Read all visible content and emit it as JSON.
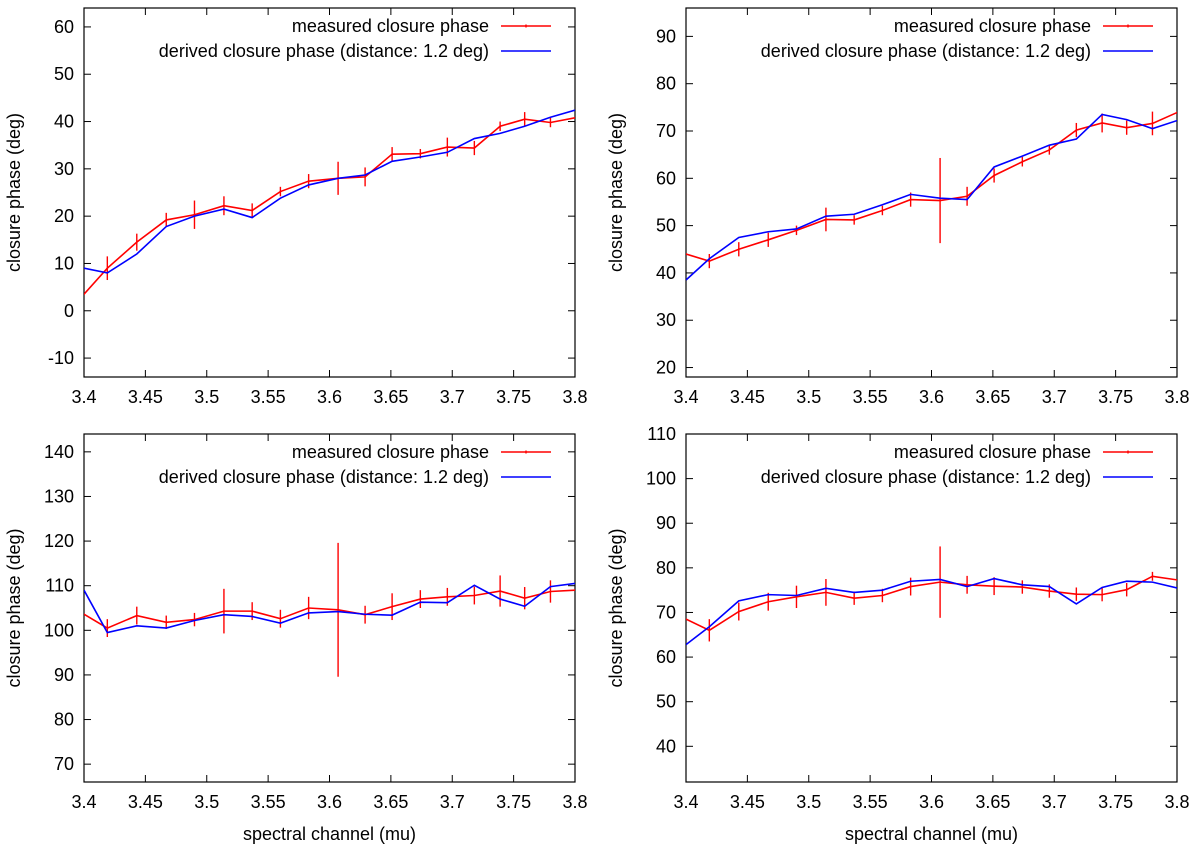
{
  "colors": {
    "measured": "#ff0000",
    "derived": "#0000ff",
    "axis": "#000000"
  },
  "chart_data": [
    {
      "type": "line",
      "position": "top-left",
      "title": "",
      "xlabel": "",
      "ylabel": "closure phase (deg)",
      "xlim": [
        3.4,
        3.8
      ],
      "ylim": [
        -14,
        64
      ],
      "xticks": [
        3.4,
        3.45,
        3.5,
        3.55,
        3.6,
        3.65,
        3.7,
        3.75,
        3.8
      ],
      "xtick_labels": [
        "3.4",
        "3.45",
        "3.5",
        "3.55",
        "3.6",
        "3.65",
        "3.7",
        "3.75",
        "3.8"
      ],
      "yticks": [
        -10,
        0,
        10,
        20,
        30,
        40,
        50,
        60
      ],
      "ytick_labels": [
        "-10",
        "0",
        "10",
        "20",
        "30",
        "40",
        "50",
        "60"
      ],
      "legend": {
        "placement": "top-right",
        "entries": [
          "measured closure phase",
          "derived closure phase (distance: 1.2 deg)"
        ]
      },
      "x": [
        3.4,
        3.419,
        3.443,
        3.467,
        3.49,
        3.514,
        3.537,
        3.56,
        3.583,
        3.607,
        3.629,
        3.651,
        3.674,
        3.696,
        3.718,
        3.739,
        3.759,
        3.78,
        3.8
      ],
      "series": [
        {
          "name": "measured closure phase",
          "style": "errorbar",
          "values": [
            3.5,
            9,
            14.5,
            19.2,
            20.3,
            22.2,
            21.2,
            25.2,
            27.4,
            28,
            28.3,
            33.1,
            33.2,
            34.6,
            34.4,
            39,
            40.5,
            39.8,
            40.8
          ],
          "errors": [
            0,
            2.5,
            1.8,
            1.5,
            3,
            2,
            1.5,
            1,
            1.5,
            3.5,
            2,
            1.5,
            1,
            2,
            1.5,
            1,
            1.5,
            1,
            0
          ]
        },
        {
          "name": "derived closure phase (distance: 1.2 deg)",
          "style": "line",
          "values": [
            9,
            8,
            12,
            17.8,
            20,
            21.5,
            19.7,
            23.8,
            26.6,
            28,
            28.7,
            31.6,
            32.5,
            33.5,
            36.4,
            37.5,
            39,
            40.9,
            42.4
          ]
        }
      ]
    },
    {
      "type": "line",
      "position": "top-right",
      "title": "",
      "xlabel": "",
      "ylabel": "closure phase (deg)",
      "xlim": [
        3.4,
        3.8
      ],
      "ylim": [
        18,
        96
      ],
      "xticks": [
        3.4,
        3.45,
        3.5,
        3.55,
        3.6,
        3.65,
        3.7,
        3.75,
        3.8
      ],
      "xtick_labels": [
        "3.4",
        "3.45",
        "3.5",
        "3.55",
        "3.6",
        "3.65",
        "3.7",
        "3.75",
        "3.8"
      ],
      "yticks": [
        20,
        30,
        40,
        50,
        60,
        70,
        80,
        90
      ],
      "ytick_labels": [
        "20",
        "30",
        "40",
        "50",
        "60",
        "70",
        "80",
        "90"
      ],
      "legend": {
        "placement": "top-right",
        "entries": [
          "measured closure phase",
          "derived closure phase (distance: 1.2 deg)"
        ]
      },
      "x": [
        3.4,
        3.419,
        3.443,
        3.467,
        3.49,
        3.514,
        3.537,
        3.56,
        3.583,
        3.607,
        3.629,
        3.651,
        3.674,
        3.696,
        3.718,
        3.739,
        3.759,
        3.78,
        3.8
      ],
      "series": [
        {
          "name": "measured closure phase",
          "style": "errorbar",
          "values": [
            44,
            42.5,
            45,
            47,
            49,
            51.3,
            51.2,
            53.2,
            55.5,
            55.3,
            56.2,
            60.6,
            63.5,
            66,
            70.2,
            71.7,
            70.7,
            71.6,
            73.9
          ],
          "errors": [
            0,
            1.5,
            1.5,
            1.5,
            1,
            2.5,
            1,
            1,
            1.5,
            9,
            2,
            1.5,
            1,
            1,
            1.5,
            2,
            1.5,
            2.5,
            0
          ]
        },
        {
          "name": "derived closure phase (distance: 1.2 deg)",
          "style": "line",
          "values": [
            38.5,
            43,
            47.5,
            48.7,
            49.3,
            52,
            52.4,
            54.4,
            56.6,
            55.8,
            55.5,
            62.4,
            64.7,
            67,
            68.3,
            73.5,
            72.4,
            70.5,
            72.2
          ]
        }
      ]
    },
    {
      "type": "line",
      "position": "bottom-left",
      "title": "",
      "xlabel": "spectral channel (mu)",
      "ylabel": "closure phase (deg)",
      "xlim": [
        3.4,
        3.8
      ],
      "ylim": [
        66,
        144
      ],
      "xticks": [
        3.4,
        3.45,
        3.5,
        3.55,
        3.6,
        3.65,
        3.7,
        3.75,
        3.8
      ],
      "xtick_labels": [
        "3.4",
        "3.45",
        "3.5",
        "3.55",
        "3.6",
        "3.65",
        "3.7",
        "3.75",
        "3.8"
      ],
      "yticks": [
        70,
        80,
        90,
        100,
        110,
        120,
        130,
        140
      ],
      "ytick_labels": [
        "70",
        "80",
        "90",
        "100",
        "110",
        "120",
        "130",
        "140"
      ],
      "legend": {
        "placement": "top-right",
        "entries": [
          "measured closure phase",
          "derived closure phase (distance: 1.2 deg)"
        ]
      },
      "x": [
        3.4,
        3.419,
        3.443,
        3.467,
        3.49,
        3.514,
        3.537,
        3.56,
        3.583,
        3.607,
        3.629,
        3.651,
        3.674,
        3.696,
        3.718,
        3.739,
        3.759,
        3.78,
        3.8
      ],
      "series": [
        {
          "name": "measured closure phase",
          "style": "errorbar",
          "values": [
            103.6,
            100.5,
            103.3,
            101.8,
            102.4,
            104.3,
            104.3,
            102.6,
            105,
            104.6,
            103.5,
            105.3,
            107,
            107.5,
            107.8,
            108.8,
            107.2,
            108.7,
            109
          ],
          "errors": [
            0,
            2,
            2,
            1.5,
            1.5,
            5,
            2,
            2,
            2.5,
            15,
            2,
            3,
            2,
            2,
            2,
            3.5,
            2.5,
            2.5,
            0
          ]
        },
        {
          "name": "derived closure phase (distance: 1.2 deg)",
          "style": "line",
          "values": [
            109,
            99.5,
            101,
            100.5,
            102.2,
            103.5,
            103.1,
            101.6,
            103.9,
            104.2,
            103.6,
            103.4,
            106.3,
            106.2,
            110.1,
            107,
            105.4,
            109.8,
            110.5
          ]
        }
      ]
    },
    {
      "type": "line",
      "position": "bottom-right",
      "title": "",
      "xlabel": "spectral channel (mu)",
      "ylabel": "closure phase (deg)",
      "xlim": [
        3.4,
        3.8
      ],
      "ylim": [
        32,
        110
      ],
      "xticks": [
        3.4,
        3.45,
        3.5,
        3.55,
        3.6,
        3.65,
        3.7,
        3.75,
        3.8
      ],
      "xtick_labels": [
        "3.4",
        "3.45",
        "3.5",
        "3.55",
        "3.6",
        "3.65",
        "3.7",
        "3.75",
        "3.8"
      ],
      "yticks": [
        40,
        50,
        60,
        70,
        80,
        90,
        100,
        110
      ],
      "ytick_labels": [
        "40",
        "50",
        "60",
        "70",
        "80",
        "90",
        "100",
        "110"
      ],
      "legend": {
        "placement": "top-right",
        "entries": [
          "measured closure phase",
          "derived closure phase (distance: 1.2 deg)"
        ]
      },
      "x": [
        3.4,
        3.419,
        3.443,
        3.467,
        3.49,
        3.514,
        3.537,
        3.56,
        3.583,
        3.607,
        3.629,
        3.651,
        3.674,
        3.696,
        3.718,
        3.739,
        3.759,
        3.78,
        3.8
      ],
      "series": [
        {
          "name": "measured closure phase",
          "style": "errorbar",
          "values": [
            68.5,
            66,
            70.2,
            72.4,
            73.5,
            74.5,
            73.2,
            73.8,
            75.8,
            76.8,
            76.2,
            75.9,
            75.7,
            74.8,
            74.1,
            74,
            75.1,
            78.1,
            77.3
          ],
          "errors": [
            0,
            2.5,
            2,
            2,
            2.5,
            3,
            1.5,
            1.5,
            2,
            8,
            2,
            2,
            1.5,
            1.5,
            1.5,
            1.5,
            1.5,
            1,
            0
          ]
        },
        {
          "name": "derived closure phase (distance: 1.2 deg)",
          "style": "line",
          "values": [
            62.8,
            66.8,
            72.6,
            74,
            73.8,
            75.4,
            74.5,
            75,
            77,
            77.4,
            75.8,
            77.6,
            76.2,
            75.8,
            71.9,
            75.6,
            77,
            76.8,
            75.5
          ]
        }
      ]
    }
  ]
}
